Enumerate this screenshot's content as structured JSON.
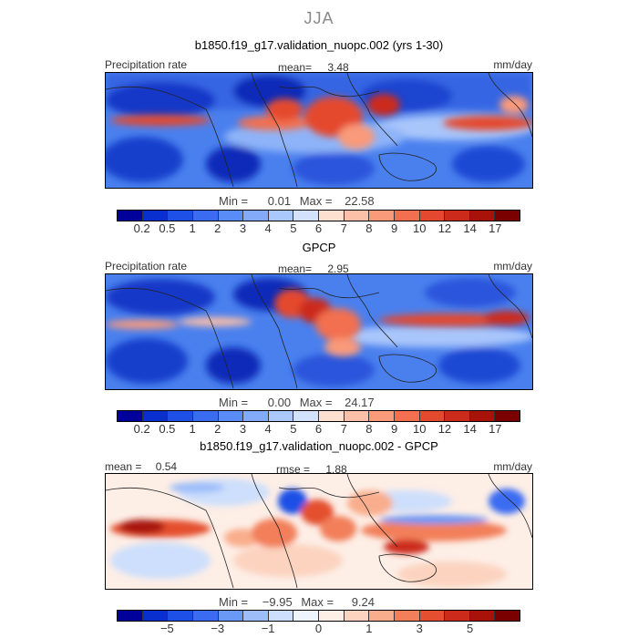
{
  "season": "JJA",
  "panels": [
    {
      "title": "b1850.f19_g17.validation_nuopc.002 (yrs 1-30)",
      "left_label": "Precipitation rate",
      "center_label": "mean=",
      "center_value": "3.48",
      "right_label": "mm/day",
      "min_label": "Min =",
      "min_value": "0.01",
      "max_label": "Max =",
      "max_value": "22.58"
    },
    {
      "title": "GPCP",
      "left_label": "Precipitation rate",
      "center_label": "mean=",
      "center_value": "2.95",
      "right_label": "mm/day",
      "min_label": "Min =",
      "min_value": "0.00",
      "max_label": "Max =",
      "max_value": "24.17"
    },
    {
      "title": "b1850.f19_g17.validation_nuopc.002 - GPCP",
      "left_label": "mean =",
      "left_value": "0.54",
      "center_label": "rmse =",
      "center_value": "1.88",
      "right_label": "mm/day",
      "min_label": "Min =",
      "min_value": "−9.95",
      "max_label": "Max =",
      "max_value": "9.24"
    }
  ],
  "colorbars": {
    "precip": {
      "colors": [
        "#00009b",
        "#0a2fcf",
        "#1e4fe6",
        "#3a6cf2",
        "#5a8cf7",
        "#82aaf9",
        "#aac8fb",
        "#d2e2fd",
        "#fde0d0",
        "#fcc0a8",
        "#f99a7a",
        "#f2704f",
        "#e4492f",
        "#cc2a1a",
        "#a81208",
        "#7a0000"
      ],
      "ticks": [
        "0.2",
        "0.5",
        "1",
        "2",
        "3",
        "4",
        "5",
        "6",
        "7",
        "8",
        "9",
        "10",
        "12",
        "14",
        "17"
      ]
    },
    "diff": {
      "colors": [
        "#00009b",
        "#0a2fcf",
        "#1e4fe6",
        "#3a6cf2",
        "#6a98f5",
        "#9dbdf9",
        "#cddffc",
        "#eef4fe",
        "#fdeee6",
        "#fcd3bf",
        "#f9ad8c",
        "#f27f5a",
        "#e4502f",
        "#cc2a1a",
        "#a81208",
        "#7a0000"
      ],
      "ticks": [
        "−5",
        "−3",
        "−1",
        "0",
        "1",
        "3",
        "5"
      ]
    }
  },
  "chart_data": [
    {
      "type": "heatmap",
      "title": "b1850.f19_g17.validation_nuopc.002 (yrs 1-30)",
      "variable": "Precipitation rate",
      "units": "mm/day",
      "season": "JJA",
      "mean": 3.48,
      "min": 0.01,
      "max": 22.58,
      "colorbar_levels": [
        0.2,
        0.5,
        1,
        2,
        3,
        4,
        5,
        6,
        7,
        8,
        9,
        10,
        12,
        14,
        17
      ]
    },
    {
      "type": "heatmap",
      "title": "GPCP",
      "variable": "Precipitation rate",
      "units": "mm/day",
      "season": "JJA",
      "mean": 2.95,
      "min": 0.0,
      "max": 24.17,
      "colorbar_levels": [
        0.2,
        0.5,
        1,
        2,
        3,
        4,
        5,
        6,
        7,
        8,
        9,
        10,
        12,
        14,
        17
      ]
    },
    {
      "type": "heatmap",
      "title": "b1850.f19_g17.validation_nuopc.002 - GPCP",
      "units": "mm/day",
      "season": "JJA",
      "mean": 0.54,
      "rmse": 1.88,
      "min": -9.95,
      "max": 9.24,
      "colorbar_levels": [
        -5,
        -3,
        -1,
        0,
        1,
        3,
        5
      ]
    }
  ]
}
